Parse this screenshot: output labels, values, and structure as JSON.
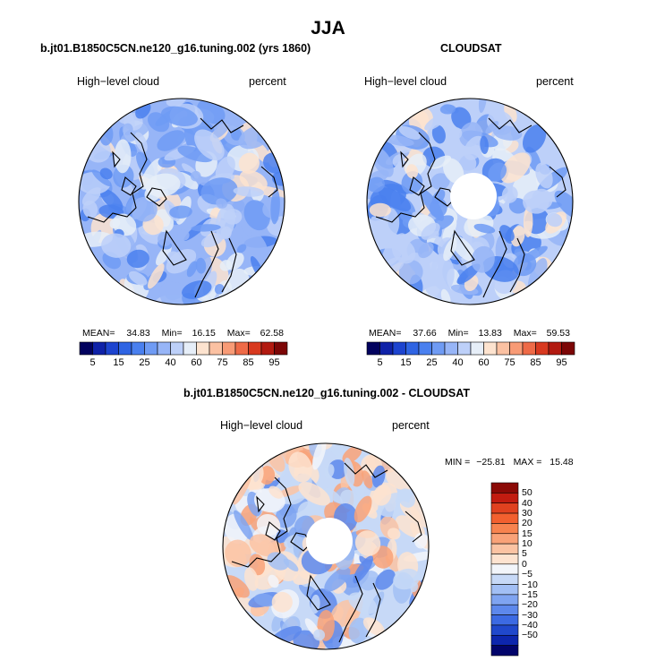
{
  "page": {
    "title": "JJA"
  },
  "panels": [
    {
      "id": "model",
      "title": "b.jt01.B1850C5CN.ne120_g16.tuning.002 (yrs 1860)",
      "variable": "High−level cloud",
      "units": "percent",
      "stats": {
        "mean_label": "MEAN=",
        "mean": "34.83",
        "min_label": "Min=",
        "min": "16.15",
        "max_label": "Max=",
        "max": "62.58"
      },
      "polar_hole": false
    },
    {
      "id": "obs",
      "title": "CLOUDSAT",
      "variable": "High−level cloud",
      "units": "percent",
      "stats": {
        "mean_label": "MEAN=",
        "mean": "37.66",
        "min_label": "Min=",
        "min": "13.83",
        "max_label": "Max=",
        "max": "59.53"
      },
      "polar_hole": true
    },
    {
      "id": "diff",
      "title": "b.jt01.B1850C5CN.ne120_g16.tuning.002 - CLOUDSAT",
      "variable": "High−level cloud",
      "units": "percent",
      "stats": {
        "min_label": "MIN =",
        "min": "−25.81",
        "max_label": "MAX =",
        "max": "15.48"
      },
      "polar_hole": true
    }
  ],
  "chart_data": [
    {
      "type": "heatmap",
      "projection": "north polar stereographic",
      "title": "b.jt01.B1850C5CN.ne120_g16.tuning.002 (yrs 1860)",
      "subtitle": "High−level cloud",
      "units": "percent",
      "mean": 34.83,
      "min": 16.15,
      "max": 62.58,
      "colorbar": {
        "levels": [
          5,
          10,
          15,
          20,
          25,
          30,
          40,
          50,
          60,
          65,
          75,
          80,
          85,
          90,
          95
        ],
        "tick_labels": [
          "5",
          "15",
          "25",
          "40",
          "60",
          "75",
          "85",
          "95"
        ],
        "colors": [
          "#02025e",
          "#0f22a8",
          "#1d44cf",
          "#2f64e3",
          "#4a80ef",
          "#6f9bf4",
          "#97b5f7",
          "#bdd0f9",
          "#e6eef8",
          "#fde3cf",
          "#fbc1a2",
          "#f89b76",
          "#ee6a47",
          "#d8391f",
          "#b21a10",
          "#7c0606"
        ]
      }
    },
    {
      "type": "heatmap",
      "projection": "north polar stereographic",
      "title": "CLOUDSAT",
      "subtitle": "High−level cloud",
      "units": "percent",
      "mean": 37.66,
      "min": 13.83,
      "max": 59.53,
      "colorbar": {
        "levels": [
          5,
          10,
          15,
          20,
          25,
          30,
          40,
          50,
          60,
          65,
          75,
          80,
          85,
          90,
          95
        ],
        "tick_labels": [
          "5",
          "15",
          "25",
          "40",
          "60",
          "75",
          "85",
          "95"
        ],
        "colors": [
          "#02025e",
          "#0f22a8",
          "#1d44cf",
          "#2f64e3",
          "#4a80ef",
          "#6f9bf4",
          "#97b5f7",
          "#bdd0f9",
          "#e6eef8",
          "#fde3cf",
          "#fbc1a2",
          "#f89b76",
          "#ee6a47",
          "#d8391f",
          "#b21a10",
          "#7c0606"
        ]
      }
    },
    {
      "type": "heatmap",
      "projection": "north polar stereographic",
      "title": "b.jt01.B1850C5CN.ne120_g16.tuning.002 - CLOUDSAT",
      "subtitle": "High−level cloud",
      "units": "percent",
      "min": -25.81,
      "max": 15.48,
      "colorbar": {
        "orientation": "vertical",
        "tick_labels": [
          "50",
          "40",
          "30",
          "20",
          "15",
          "10",
          "5",
          "0",
          "−5",
          "−10",
          "−15",
          "−20",
          "−30",
          "−40",
          "−50"
        ],
        "colors": [
          "#8b0a06",
          "#c21c10",
          "#e0411f",
          "#f2602f",
          "#f7834f",
          "#f9a278",
          "#fbc3a3",
          "#fde3d0",
          "#f2f5fa",
          "#c7d9f7",
          "#a2bff5",
          "#7fa4f1",
          "#5d88ec",
          "#3c6ae3",
          "#2048cc",
          "#0d26ad",
          "#02046b"
        ]
      }
    }
  ]
}
